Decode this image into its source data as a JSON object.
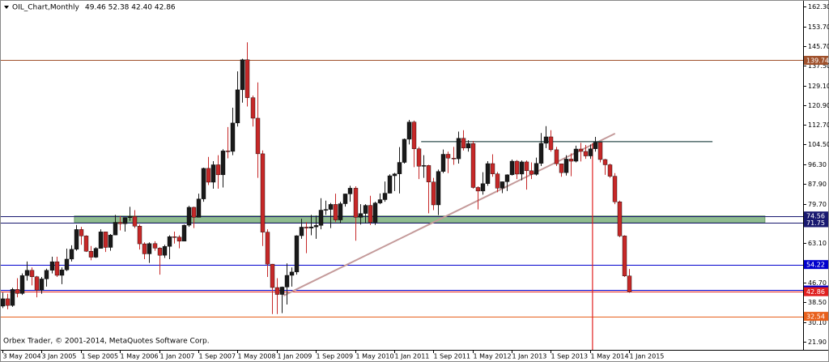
{
  "chart_data": {
    "type": "candlestick",
    "symbol": "OIL_Chart,Monthly",
    "quote": "49.46 52.38 42.40 42.86",
    "footer": "Orbex Trader, © 2001-2014, MetaQuotes Software Corp.",
    "up_color": "#1a1a1a",
    "down_color": "#c62828",
    "open": [
      36.8,
      39.9,
      37.1,
      43.8,
      42.1,
      49.6,
      51.8,
      49.1,
      43.5,
      48.2,
      51.8,
      55.4,
      49.7,
      52.0,
      56.5,
      60.6,
      68.9,
      66.2,
      59.8,
      57.3,
      61.0,
      67.9,
      61.4,
      66.6,
      71.9,
      71.3,
      73.9,
      74.4,
      70.3,
      62.9,
      58.7,
      63.0,
      61.1,
      58.1,
      61.8,
      65.9,
      65.7,
      64.0,
      70.7,
      78.2,
      74.0,
      81.7,
      94.5,
      88.7,
      96.0,
      91.8,
      101.8,
      101.6,
      113.5,
      127.4,
      140.0,
      124.1,
      115.5,
      100.6,
      67.8,
      54.4,
      44.6,
      41.7,
      44.8,
      49.7,
      51.1,
      66.3,
      69.9,
      69.5,
      70.0,
      70.6,
      77.0,
      77.3,
      79.4,
      72.9,
      79.7,
      83.8,
      86.2,
      74.0,
      75.6,
      79.0,
      71.9,
      80.0,
      81.4,
      84.1,
      91.4,
      92.2,
      97.0,
      106.7,
      113.9,
      102.7,
      95.4,
      95.7,
      88.8,
      79.2,
      93.2,
      100.4,
      98.8,
      98.5,
      107.1,
      103.0,
      104.9,
      86.5,
      85.0,
      88.1,
      96.5,
      92.2,
      86.2,
      88.9,
      91.8,
      97.5,
      92.1,
      97.2,
      93.5,
      92.0,
      96.6,
      105.0,
      107.7,
      102.3,
      96.4,
      92.7,
      98.4,
      97.5,
      102.6,
      101.6,
      99.7,
      102.7,
      105.4,
      98.2,
      96.0,
      91.2,
      80.5,
      66.2,
      49.46
    ],
    "high": [
      42.5,
      42,
      44.5,
      48.5,
      50.5,
      55.5,
      53,
      49.5,
      49,
      52.5,
      57.5,
      57.5,
      53,
      60.9,
      62.3,
      70.8,
      70,
      66.5,
      62,
      61.5,
      69,
      68,
      67,
      75,
      74.5,
      74,
      78.4,
      77,
      71,
      63.5,
      63.5,
      64,
      61.5,
      62.5,
      66.5,
      68,
      66.5,
      71,
      78.8,
      78.5,
      83.9,
      94.8,
      99.3,
      97.5,
      100,
      102.5,
      111.8,
      119.9,
      135.1,
      140.4,
      147.3,
      125,
      130.5,
      102,
      69,
      54.5,
      48.5,
      45,
      54.7,
      53,
      66.5,
      73.4,
      72,
      75,
      74.7,
      82,
      81,
      80,
      83.9,
      80.5,
      83.9,
      87.2,
      87,
      79.5,
      79.5,
      83,
      80.5,
      84,
      89,
      92,
      92.6,
      103.4,
      107,
      114.8,
      114.5,
      103.5,
      100,
      96,
      90.5,
      94,
      102.4,
      101.5,
      103.5,
      109.9,
      110.5,
      106.3,
      106,
      87,
      92.9,
      97.5,
      100.4,
      93,
      89,
      92,
      98.2,
      98,
      97.8,
      97.8,
      97,
      99,
      109.3,
      112.2,
      110.5,
      103.5,
      96.5,
      100,
      100.8,
      104,
      105.2,
      104.3,
      104.5,
      107.7,
      105.5,
      98.5,
      96.5,
      92.5,
      81,
      66.5,
      52.38
    ],
    "low": [
      36,
      35.5,
      36.5,
      40.5,
      41.5,
      47.5,
      45.5,
      40.5,
      42,
      45,
      50.5,
      49,
      46,
      51.5,
      55.5,
      60,
      62.5,
      59.5,
      56,
      57,
      61,
      59.5,
      60,
      66.5,
      68.5,
      68,
      72.5,
      69.5,
      60.5,
      56.5,
      54.9,
      60,
      50,
      57,
      56.5,
      63,
      61,
      64,
      70,
      69.5,
      74,
      80.5,
      87.5,
      86,
      86,
      86.5,
      98.7,
      100,
      112,
      122,
      120.4,
      112,
      90.5,
      62,
      49,
      33.5,
      33.5,
      33.9,
      37.5,
      45,
      50,
      65,
      59,
      66.5,
      65,
      69,
      75,
      69.5,
      72,
      71.5,
      78.5,
      80.5,
      64.2,
      71,
      71.5,
      70.8,
      70.8,
      79.5,
      80.5,
      84,
      85,
      84,
      96.5,
      104.5,
      95,
      90,
      90.5,
      75.7,
      77,
      74.9,
      92.5,
      92.5,
      96,
      96.5,
      102,
      101.5,
      86,
      77.3,
      83.5,
      87.2,
      91,
      84.5,
      84.1,
      85,
      91.5,
      90,
      89.5,
      85.6,
      90,
      91.5,
      95.5,
      103,
      101.5,
      95.5,
      91,
      91.5,
      91.2,
      97,
      97.4,
      98.5,
      98.5,
      101.5,
      97,
      91.8,
      90.5,
      79.5,
      65.7,
      49,
      42.4
    ],
    "close": [
      39.9,
      37.1,
      43.8,
      42.1,
      49.6,
      51.8,
      49.1,
      43.5,
      48.2,
      51.8,
      55.4,
      49.7,
      52.0,
      56.5,
      60.6,
      68.9,
      66.2,
      59.8,
      57.3,
      61.0,
      67.9,
      61.4,
      66.6,
      71.9,
      71.3,
      73.9,
      74.4,
      70.3,
      62.9,
      58.7,
      63.0,
      61.1,
      58.1,
      61.8,
      65.9,
      65.7,
      64.0,
      70.7,
      78.2,
      74.0,
      81.7,
      94.5,
      88.7,
      96.0,
      91.8,
      101.8,
      101.6,
      113.5,
      127.4,
      140.0,
      124.1,
      115.5,
      100.6,
      67.8,
      54.4,
      44.6,
      41.7,
      44.8,
      49.7,
      51.1,
      66.3,
      69.9,
      69.5,
      70.0,
      70.6,
      77.0,
      77.3,
      79.4,
      72.9,
      79.7,
      83.8,
      86.2,
      74.0,
      75.6,
      79.0,
      71.9,
      80.0,
      81.4,
      84.1,
      91.4,
      92.2,
      97.0,
      106.7,
      113.9,
      102.7,
      95.4,
      95.7,
      88.8,
      79.2,
      93.2,
      100.4,
      98.8,
      98.5,
      107.1,
      103.0,
      104.9,
      86.5,
      85.0,
      88.1,
      96.5,
      92.2,
      86.2,
      88.9,
      91.8,
      97.5,
      92.1,
      97.2,
      93.5,
      92.0,
      96.6,
      105.0,
      107.7,
      102.3,
      96.4,
      92.7,
      98.4,
      97.5,
      102.6,
      101.6,
      99.7,
      102.7,
      105.4,
      98.2,
      96.0,
      91.2,
      80.5,
      66.2,
      49.46,
      42.86
    ],
    "xlim": [
      -0.5,
      163.5
    ],
    "ylim": [
      18.5,
      165
    ],
    "xticks": [
      {
        "value": 0,
        "label": "3 May 2004"
      },
      {
        "value": 8,
        "label": "3 Jan 2005"
      },
      {
        "value": 16,
        "label": "1 Sep 2005"
      },
      {
        "value": 24,
        "label": "1 May 2006"
      },
      {
        "value": 32,
        "label": "1 Jan 2007"
      },
      {
        "value": 40,
        "label": "1 Sep 2007"
      },
      {
        "value": 48,
        "label": "1 May 2008"
      },
      {
        "value": 56,
        "label": "1 Jan 2009"
      },
      {
        "value": 64,
        "label": "1 Sep 2009"
      },
      {
        "value": 72,
        "label": "1 May 2010"
      },
      {
        "value": 80,
        "label": "1 Jan 2011"
      },
      {
        "value": 88,
        "label": "1 Sep 2011"
      },
      {
        "value": 96,
        "label": "1 May 2012"
      },
      {
        "value": 104,
        "label": "1 Jan 2013"
      },
      {
        "value": 112,
        "label": "1 Sep 2013"
      },
      {
        "value": 120,
        "label": "1 May 2014"
      },
      {
        "value": 128,
        "label": "1 Jan 2015"
      }
    ],
    "yticks": [
      {
        "value": 162.3,
        "label": "162.30"
      },
      {
        "value": 153.7,
        "label": "153.70"
      },
      {
        "value": 145.7,
        "label": "145.70"
      },
      {
        "value": 137.5,
        "label": "137.50"
      },
      {
        "value": 129.1,
        "label": "129.10"
      },
      {
        "value": 120.9,
        "label": "120.90"
      },
      {
        "value": 112.7,
        "label": "112.70"
      },
      {
        "value": 104.5,
        "label": "104.50"
      },
      {
        "value": 96.3,
        "label": "96.30"
      },
      {
        "value": 87.9,
        "label": "87.90"
      },
      {
        "value": 79.7,
        "label": "79.70"
      },
      {
        "value": 63.1,
        "label": "63.10"
      },
      {
        "value": 46.7,
        "label": "46.70"
      },
      {
        "value": 38.5,
        "label": "38.50"
      },
      {
        "value": 30.1,
        "label": "30.10"
      },
      {
        "value": 21.9,
        "label": "21.90"
      }
    ],
    "levels": [
      {
        "price": 139.74,
        "color": "#a0522d"
      },
      {
        "price": 74.56,
        "color": "#191970"
      },
      {
        "price": 71.75,
        "color": "#191970"
      },
      {
        "price": 54.22,
        "color": "#0000cd"
      },
      {
        "price": 43.56,
        "color": "#0000cd"
      },
      {
        "price": 42.86,
        "color": "#e02020"
      },
      {
        "price": 32.54,
        "color": "#e8601c"
      }
    ],
    "zone": {
      "x": [
        14.7,
        155.7
      ],
      "y": [
        71.75,
        74.56
      ],
      "color": "#8fbc8f"
    },
    "trendline": {
      "x": [
        57.4,
        125.1
      ],
      "y": [
        41.2,
        109.1
      ],
      "color": "#c49a9a"
    },
    "resistance": {
      "x": [
        85.5,
        145
      ],
      "y": [
        105.7,
        105.7
      ],
      "color": "#2f4f4f"
    },
    "vline": {
      "x": [
        120.5,
        120.5
      ],
      "y": [
        105,
        18.5
      ],
      "color": "#e02020"
    }
  }
}
